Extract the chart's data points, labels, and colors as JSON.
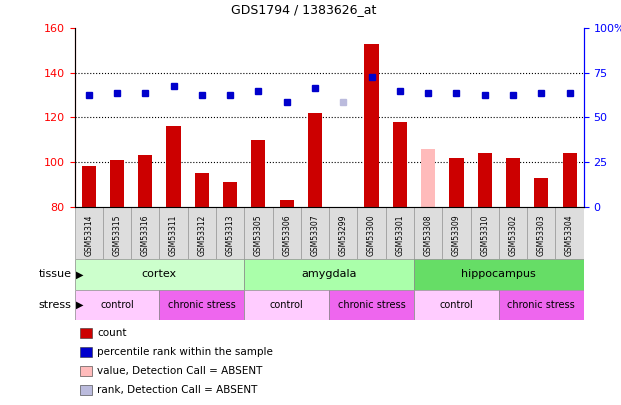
{
  "title": "GDS1794 / 1383626_at",
  "samples": [
    "GSM53314",
    "GSM53315",
    "GSM53316",
    "GSM53311",
    "GSM53312",
    "GSM53313",
    "GSM53305",
    "GSM53306",
    "GSM53307",
    "GSM53299",
    "GSM53300",
    "GSM53301",
    "GSM53308",
    "GSM53309",
    "GSM53310",
    "GSM53302",
    "GSM53303",
    "GSM53304"
  ],
  "count_values": [
    98,
    101,
    103,
    116,
    95,
    91,
    110,
    83,
    122,
    80,
    153,
    118,
    106,
    102,
    104,
    102,
    93,
    104
  ],
  "count_absent": [
    false,
    false,
    false,
    false,
    false,
    false,
    false,
    false,
    false,
    false,
    false,
    false,
    true,
    false,
    false,
    false,
    false,
    false
  ],
  "percentile_values": [
    130,
    131,
    131,
    134,
    130,
    130,
    132,
    127,
    133,
    127,
    138,
    132,
    131,
    131,
    130,
    130,
    131,
    131
  ],
  "rank_absent": [
    false,
    false,
    false,
    false,
    false,
    false,
    false,
    false,
    false,
    true,
    false,
    false,
    false,
    false,
    false,
    false,
    false,
    false
  ],
  "ylim_left": [
    80,
    160
  ],
  "ylim_right": [
    0,
    100
  ],
  "yticks_left": [
    80,
    100,
    120,
    140,
    160
  ],
  "yticks_right": [
    0,
    25,
    50,
    75,
    100
  ],
  "ytick_labels_right": [
    "0",
    "25",
    "50",
    "75",
    "100%"
  ],
  "tissue_groups": [
    {
      "label": "cortex",
      "start": 0,
      "end": 6,
      "color": "#ccffcc"
    },
    {
      "label": "amygdala",
      "start": 6,
      "end": 12,
      "color": "#aaffaa"
    },
    {
      "label": "hippocampus",
      "start": 12,
      "end": 18,
      "color": "#66dd66"
    }
  ],
  "stress_groups": [
    {
      "label": "control",
      "start": 0,
      "end": 3,
      "color": "#ffccff"
    },
    {
      "label": "chronic stress",
      "start": 3,
      "end": 6,
      "color": "#ee66ee"
    },
    {
      "label": "control",
      "start": 6,
      "end": 9,
      "color": "#ffccff"
    },
    {
      "label": "chronic stress",
      "start": 9,
      "end": 12,
      "color": "#ee66ee"
    },
    {
      "label": "control",
      "start": 12,
      "end": 15,
      "color": "#ffccff"
    },
    {
      "label": "chronic stress",
      "start": 15,
      "end": 18,
      "color": "#ee66ee"
    }
  ],
  "bar_width": 0.5,
  "count_color": "#cc0000",
  "count_absent_color": "#ffbbbb",
  "percentile_color": "#0000cc",
  "percentile_absent_color": "#bbbbdd",
  "marker_size": 5,
  "legend_items": [
    {
      "label": "count",
      "color": "#cc0000"
    },
    {
      "label": "percentile rank within the sample",
      "color": "#0000cc"
    },
    {
      "label": "value, Detection Call = ABSENT",
      "color": "#ffbbbb"
    },
    {
      "label": "rank, Detection Call = ABSENT",
      "color": "#bbbbdd"
    }
  ]
}
